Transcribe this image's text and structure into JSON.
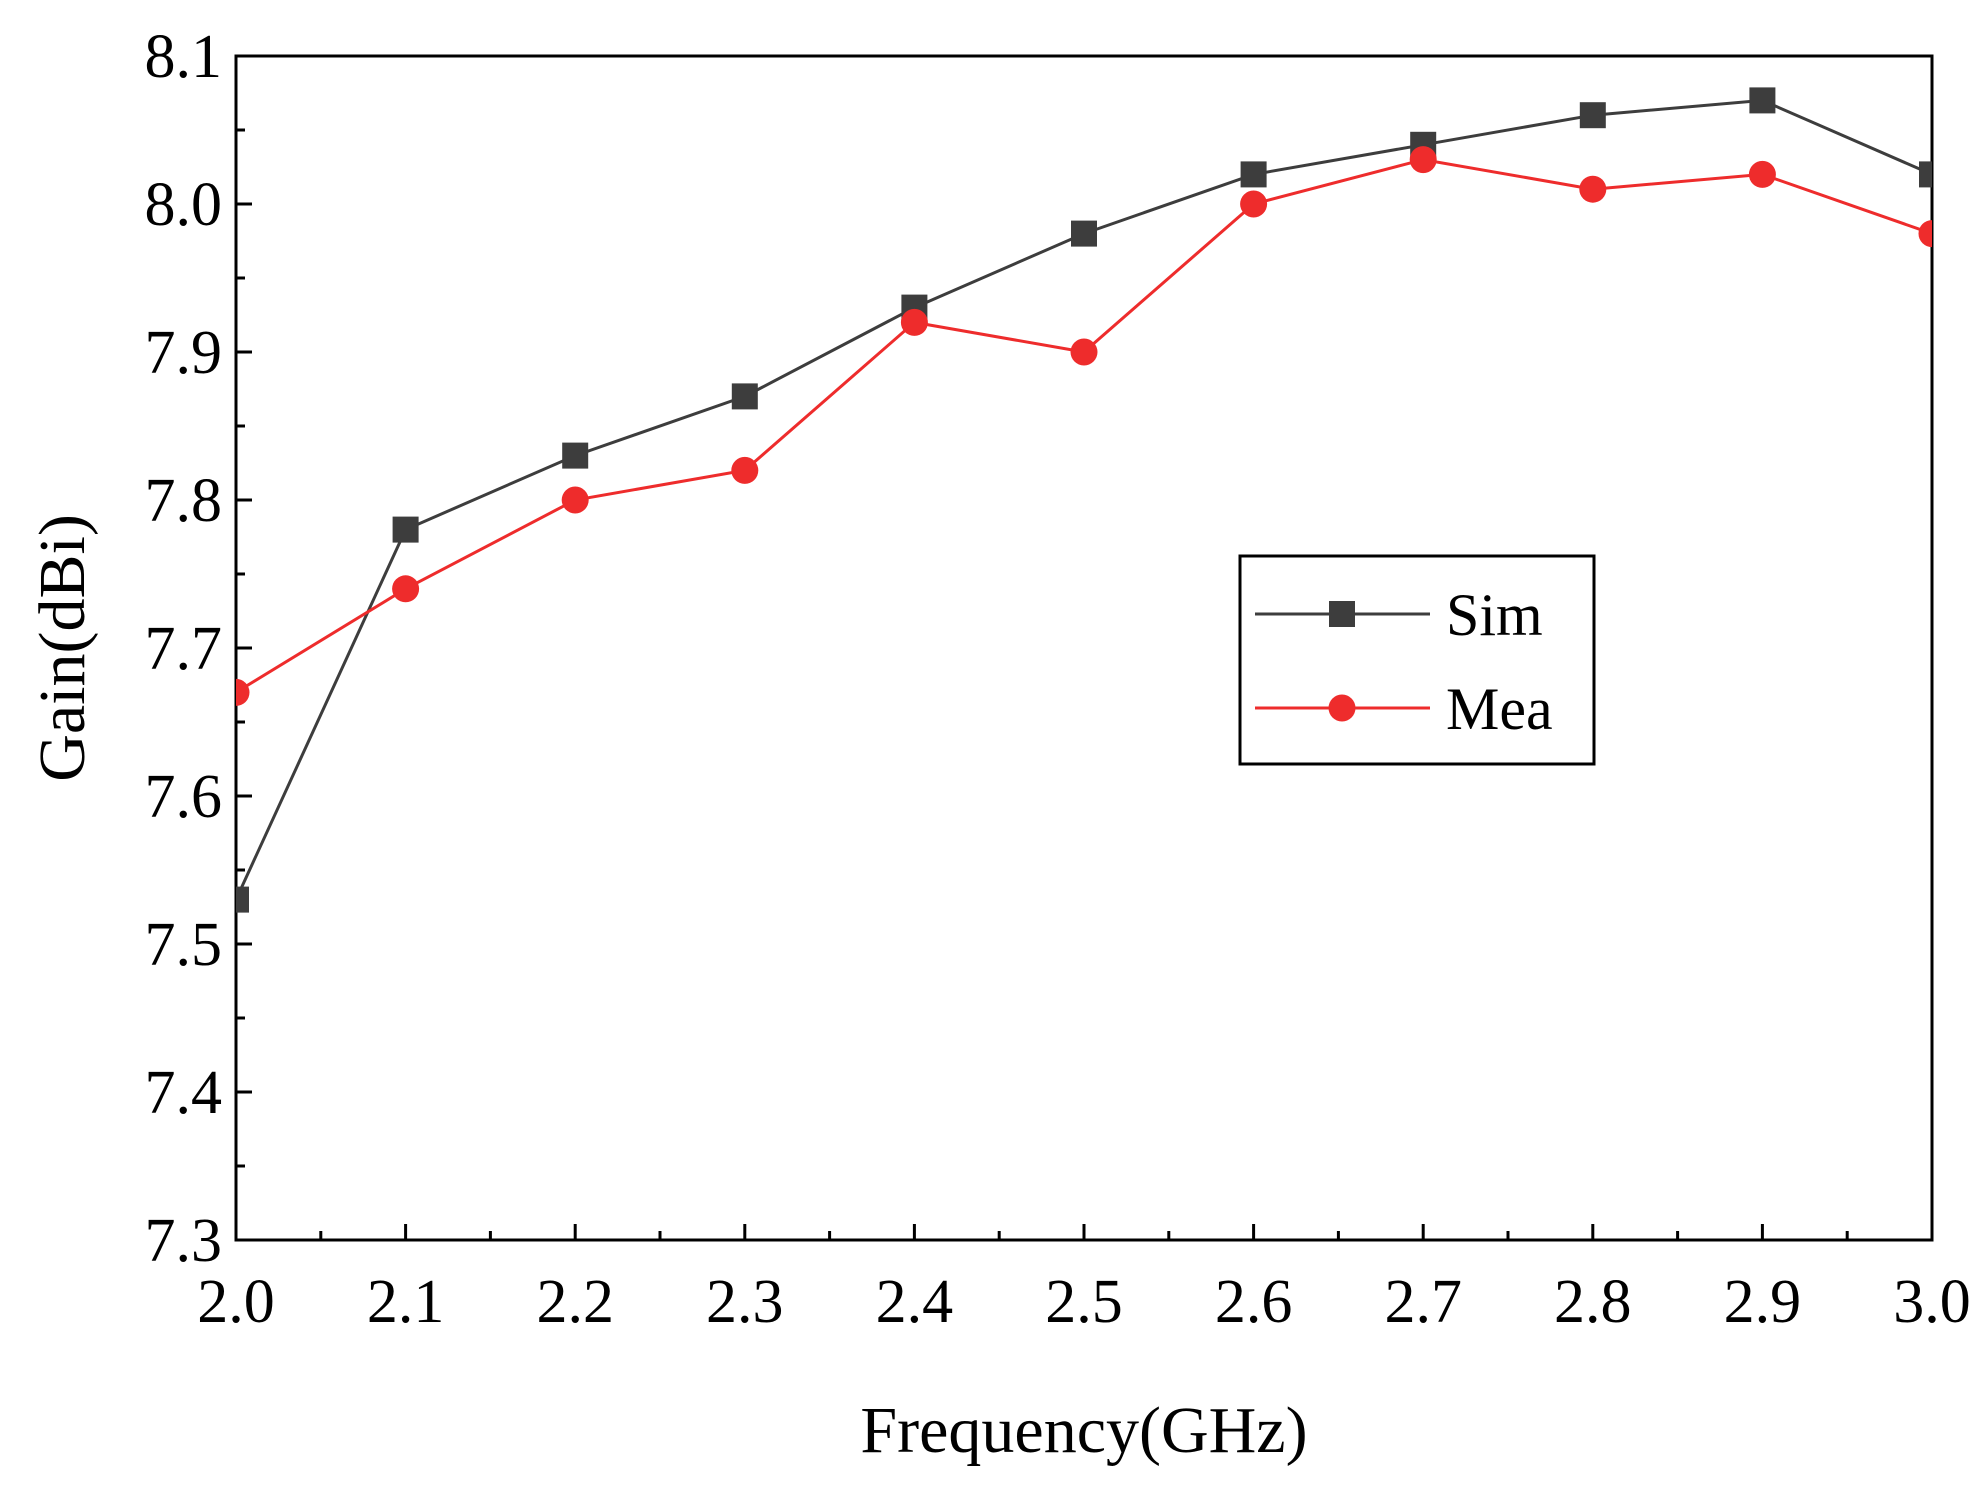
{
  "chart_data": {
    "type": "line",
    "title": "",
    "xlabel": "Frequency(GHz)",
    "ylabel": "Gain(dBi)",
    "xlim": [
      2.0,
      3.0
    ],
    "ylim": [
      7.3,
      8.1
    ],
    "x_ticks": [
      "2.0",
      "2.1",
      "2.2",
      "2.3",
      "2.4",
      "2.5",
      "2.6",
      "2.7",
      "2.8",
      "2.9",
      "3.0"
    ],
    "y_ticks": [
      "7.3",
      "7.4",
      "7.5",
      "7.6",
      "7.7",
      "7.8",
      "7.9",
      "8.0",
      "8.1"
    ],
    "x": [
      2.0,
      2.1,
      2.2,
      2.3,
      2.4,
      2.5,
      2.6,
      2.7,
      2.8,
      2.9,
      3.0
    ],
    "series": [
      {
        "name": "Sim",
        "marker": "square",
        "color": "#3d3d3d",
        "values": [
          7.53,
          7.78,
          7.83,
          7.87,
          7.93,
          7.98,
          8.02,
          8.04,
          8.06,
          8.07,
          8.02
        ]
      },
      {
        "name": "Mea",
        "marker": "circle",
        "color": "#ee2c2c",
        "values": [
          7.67,
          7.74,
          7.8,
          7.82,
          7.92,
          7.9,
          8.0,
          8.03,
          8.01,
          8.02,
          7.98
        ]
      }
    ],
    "grid": false,
    "legend_position": "center-right"
  }
}
